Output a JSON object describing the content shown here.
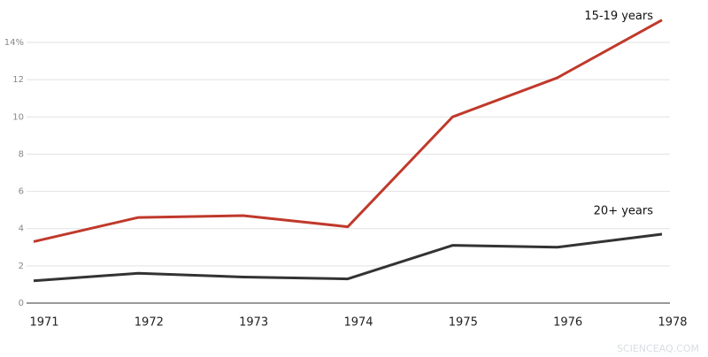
{
  "chart_data": {
    "type": "line",
    "categories": [
      "1971",
      "1972",
      "1973",
      "1974",
      "1975",
      "1976",
      "1978"
    ],
    "series": [
      {
        "name": "15-19 years",
        "color": "#c0392b",
        "values": [
          3.3,
          4.6,
          4.7,
          4.1,
          10.0,
          12.1,
          15.2
        ]
      },
      {
        "name": "20+ years",
        "color": "#333333",
        "values": [
          1.2,
          1.6,
          1.4,
          1.3,
          3.1,
          3.0,
          3.7
        ]
      }
    ],
    "ylim": [
      0,
      15.5
    ],
    "yticks": [
      0,
      2,
      4,
      6,
      8,
      10,
      12,
      {
        "value": 14,
        "label": "14%"
      }
    ],
    "grid": true,
    "watermark": "SCIENCEAQ.COM"
  }
}
